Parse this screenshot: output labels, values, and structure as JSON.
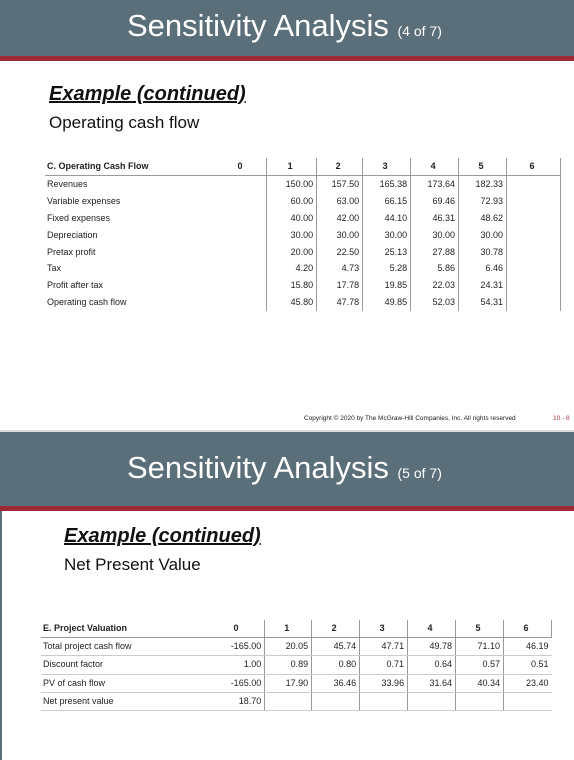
{
  "slide1": {
    "title": "Sensitivity Analysis",
    "title_count": "(4 of 7)",
    "subheading": "Example (continued)",
    "subtext": "Operating cash flow",
    "table": {
      "header_label": "C. Operating Cash Flow",
      "years": [
        "0",
        "1",
        "2",
        "3",
        "4",
        "5",
        "6"
      ],
      "rows": [
        {
          "label": "Revenues",
          "values": [
            "",
            "150.00",
            "157.50",
            "165.38",
            "173.64",
            "182.33",
            ""
          ]
        },
        {
          "label": "Variable expenses",
          "values": [
            "",
            "60.00",
            "63.00",
            "66.15",
            "69.46",
            "72.93",
            ""
          ]
        },
        {
          "label": "Fixed expenses",
          "values": [
            "",
            "40.00",
            "42.00",
            "44.10",
            "46.31",
            "48.62",
            ""
          ]
        },
        {
          "label": "Depreciation",
          "values": [
            "",
            "30.00",
            "30.00",
            "30.00",
            "30.00",
            "30.00",
            ""
          ]
        },
        {
          "label": "Pretax profit",
          "values": [
            "",
            "20.00",
            "22.50",
            "25.13",
            "27.88",
            "30.78",
            ""
          ]
        },
        {
          "label": "Tax",
          "values": [
            "",
            "4.20",
            "4.73",
            "5.28",
            "5.86",
            "6.46",
            ""
          ]
        },
        {
          "label": "Profit after tax",
          "values": [
            "",
            "15.80",
            "17.78",
            "19.85",
            "22.03",
            "24.31",
            ""
          ]
        },
        {
          "label": "Operating cash flow",
          "values": [
            "",
            "45.80",
            "47.78",
            "49.85",
            "52.03",
            "54.31",
            ""
          ]
        }
      ]
    },
    "copyright": "Copyright © 2020 by The McGraw-Hill Companies, Inc. All rights reserved",
    "page_number": "10 - 8"
  },
  "slide2": {
    "title": "Sensitivity Analysis",
    "title_count": "(5 of 7)",
    "subheading": "Example (continued)",
    "subtext": "Net Present Value",
    "table": {
      "header_label": "E. Project Valuation",
      "years": [
        "0",
        "1",
        "2",
        "3",
        "4",
        "5",
        "6"
      ],
      "rows": [
        {
          "label": "Total project cash flow",
          "values": [
            "-165.00",
            "20.05",
            "45.74",
            "47.71",
            "49.78",
            "71.10",
            "46.19"
          ]
        },
        {
          "label": "Discount factor",
          "values": [
            "1.00",
            "0.89",
            "0.80",
            "0.71",
            "0.64",
            "0.57",
            "0.51"
          ]
        },
        {
          "label": "PV of cash flow",
          "values": [
            "-165.00",
            "17.90",
            "36.46",
            "33.96",
            "31.64",
            "40.34",
            "23.40"
          ]
        },
        {
          "label": "Net present value",
          "values": [
            "18.70",
            "",
            "",
            "",
            "",
            "",
            ""
          ]
        }
      ]
    }
  }
}
